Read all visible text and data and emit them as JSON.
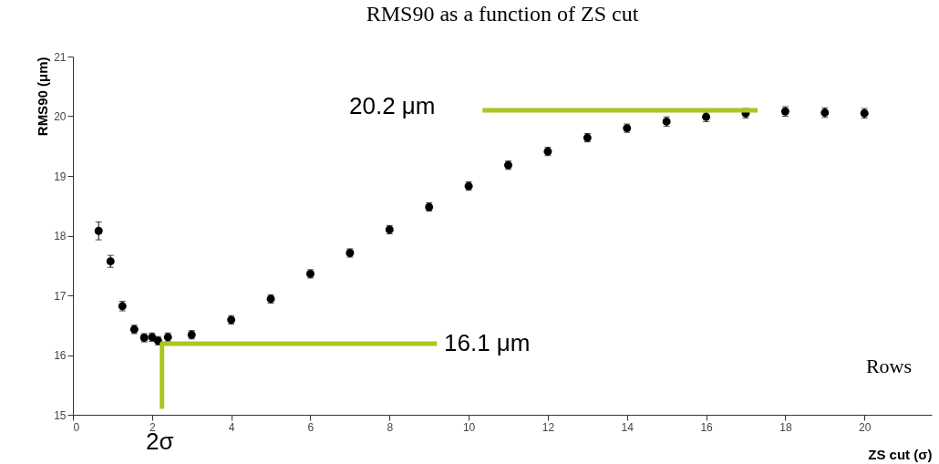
{
  "chart_data": {
    "type": "scatter",
    "title": "RMS90 as a function of ZS cut",
    "xlabel": "ZS cut (σ)",
    "ylabel": "RMS90 (μm)",
    "xlim": [
      0,
      21.7
    ],
    "xticks": [
      0,
      2,
      4,
      6,
      8,
      10,
      12,
      14,
      16,
      18,
      20
    ],
    "ylim": [
      15,
      21
    ],
    "yticks": [
      15,
      16,
      17,
      18,
      19,
      20,
      21
    ],
    "grid": false,
    "marker": "circle",
    "line_style": "solid",
    "series": [
      {
        "color": "#000000",
        "x": [
          0.65,
          0.95,
          1.25,
          1.55,
          1.8,
          2.0,
          2.15,
          2.4,
          3,
          4,
          5,
          6,
          7,
          8,
          9,
          10,
          11,
          12,
          13,
          14,
          15,
          16,
          17,
          18,
          19,
          20
        ],
        "values": [
          18.08,
          17.57,
          16.82,
          16.43,
          16.29,
          16.3,
          16.24,
          16.3,
          16.34,
          16.59,
          16.94,
          17.36,
          17.71,
          18.1,
          18.48,
          18.83,
          19.18,
          19.41,
          19.64,
          19.8,
          19.91,
          19.99,
          20.05,
          20.08,
          20.06,
          20.05
        ],
        "errors": [
          0.15,
          0.1,
          0.08,
          0.07,
          0.07,
          0.07,
          0.07,
          0.07,
          0.07,
          0.07,
          0.07,
          0.07,
          0.07,
          0.07,
          0.07,
          0.07,
          0.07,
          0.07,
          0.07,
          0.07,
          0.08,
          0.08,
          0.08,
          0.08,
          0.08,
          0.08
        ]
      },
      {
        "type": "line",
        "marker": "none",
        "color": "#a8c81e",
        "x": [
          2.25,
          2.25,
          9.2
        ],
        "values": [
          15.1,
          16.19,
          16.19
        ]
      },
      {
        "type": "line",
        "marker": "none",
        "color": "#a8c81e",
        "x": [
          10.35,
          17.3
        ],
        "values": [
          20.1,
          20.1
        ]
      }
    ],
    "annotations": [
      "20.2 μm",
      "16.1 μm",
      "2σ",
      "Rows"
    ]
  }
}
